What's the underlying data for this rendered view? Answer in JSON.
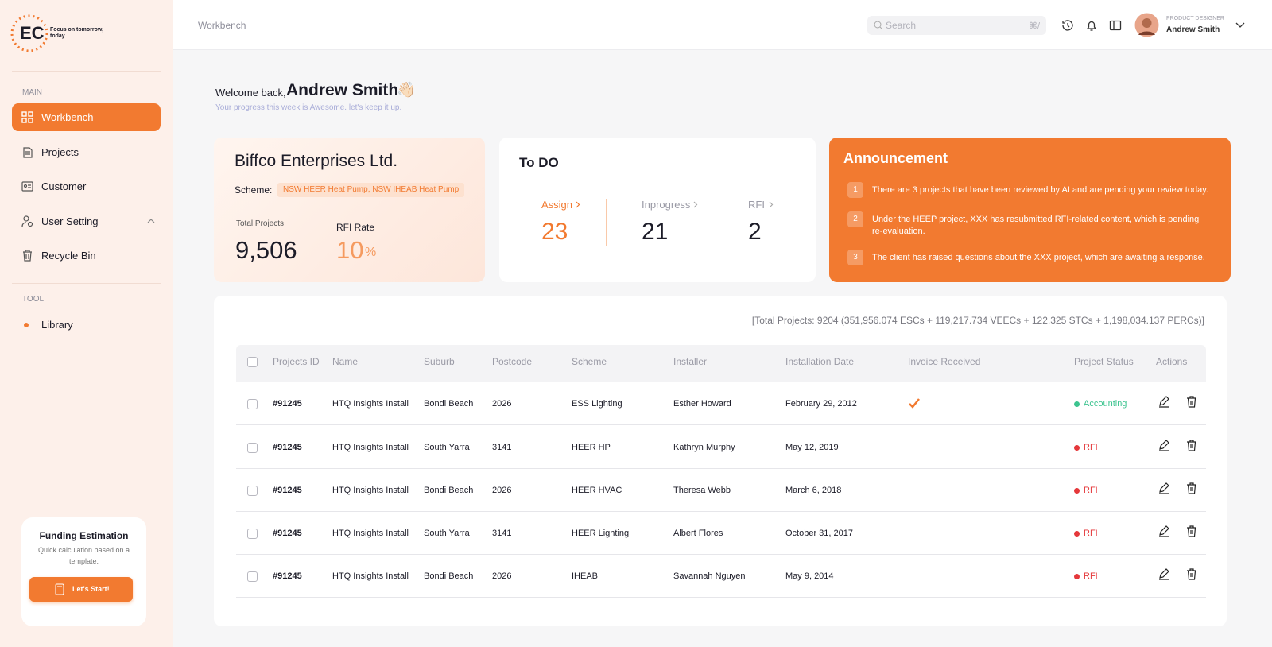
{
  "sidebar": {
    "logo": "EC",
    "tagline": "Focus on tomorrow, today",
    "sections": [
      {
        "title": "MAIN",
        "items": [
          "Workbench",
          "Projects",
          "Customer",
          "User Setting",
          "Recycle Bin"
        ]
      },
      {
        "title": "TOOL",
        "items": [
          "Library"
        ]
      }
    ],
    "promo": {
      "title": "Funding Estimation",
      "text": "Quick calculation based on a template.",
      "button": "Let's Start!"
    }
  },
  "header": {
    "breadcrumb": "Workbench",
    "search_placeholder": "Search",
    "shortcut": "⌘/",
    "user_role": "PRODUCT DESIGNER",
    "user_name": "Andrew Smith"
  },
  "welcome": {
    "greeting": "Welcome back,",
    "name": "Andrew Smith",
    "emoji": "👋🏻",
    "subtitle": "Your progress this week is Awesome. let's keep it up."
  },
  "company": {
    "name": "Biffco Enterprises Ltd.",
    "scheme_label": "Scheme:",
    "scheme": "NSW HEER Heat Pump, NSW IHEAB Heat Pump",
    "total_label": "Total Projects",
    "total": "9,506",
    "rfi_label": "RFI Rate",
    "rfi_value": "10",
    "rfi_unit": "%"
  },
  "todo": {
    "title": "To DO",
    "items": [
      {
        "label": "Assign",
        "value": "23"
      },
      {
        "label": "Inprogress",
        "value": "21"
      },
      {
        "label": "RFI",
        "value": "2"
      }
    ]
  },
  "announcement": {
    "title": "Announcement",
    "items": [
      {
        "number": "1",
        "text": "There are 3 projects that have been reviewed by AI and are pending your review today."
      },
      {
        "number": "2",
        "text": "Under the HEEP project, XXX has resubmitted RFI-related content, which is pending re-evaluation."
      },
      {
        "number": "3",
        "text": "The client has raised questions about the XXX project, which are awaiting a response."
      }
    ]
  },
  "table": {
    "summary": "[Total Projects: 9204  (351,956.074 ESCs + 119,217.734 VEECs + 122,325 STCs + 1,198,034.137 PERCs)]",
    "columns": [
      "Projects ID",
      "Name",
      "Suburb",
      "Postcode",
      "Scheme",
      "Installer",
      "Installation Date",
      "Invoice Received",
      "Project Status",
      "Actions"
    ],
    "rows": [
      {
        "cells": [
          "#91245",
          "HTQ Insights Install",
          "Bondi Beach",
          "2026",
          "ESS Lighting",
          "Esther Howard",
          "February 29, 2012"
        ],
        "invoice_received": true,
        "status": "Accounting",
        "status_color": "#3cc48f"
      },
      {
        "cells": [
          "#91245",
          "HTQ Insights Install",
          "South Yarra",
          "3141",
          "HEER HP",
          "Kathryn Murphy",
          "May 12, 2019"
        ],
        "invoice_received": false,
        "status": "RFI",
        "status_color": "#e5383b"
      },
      {
        "cells": [
          "#91245",
          "HTQ Insights Install",
          "Bondi Beach",
          "2026",
          "HEER HVAC",
          "Theresa Webb",
          "March 6, 2018"
        ],
        "invoice_received": false,
        "status": "RFI",
        "status_color": "#e5383b"
      },
      {
        "cells": [
          "#91245",
          "HTQ Insights Install",
          "South Yarra",
          "3141",
          "HEER Lighting",
          "Albert Flores",
          "October 31, 2017"
        ],
        "invoice_received": false,
        "status": "RFI",
        "status_color": "#e5383b"
      },
      {
        "cells": [
          "#91245",
          "HTQ Insights Install",
          "Bondi Beach",
          "2026",
          "IHEAB",
          "Savannah Nguyen",
          "May 9, 2014"
        ],
        "invoice_received": false,
        "status": "RFI",
        "status_color": "#e5383b"
      }
    ]
  }
}
